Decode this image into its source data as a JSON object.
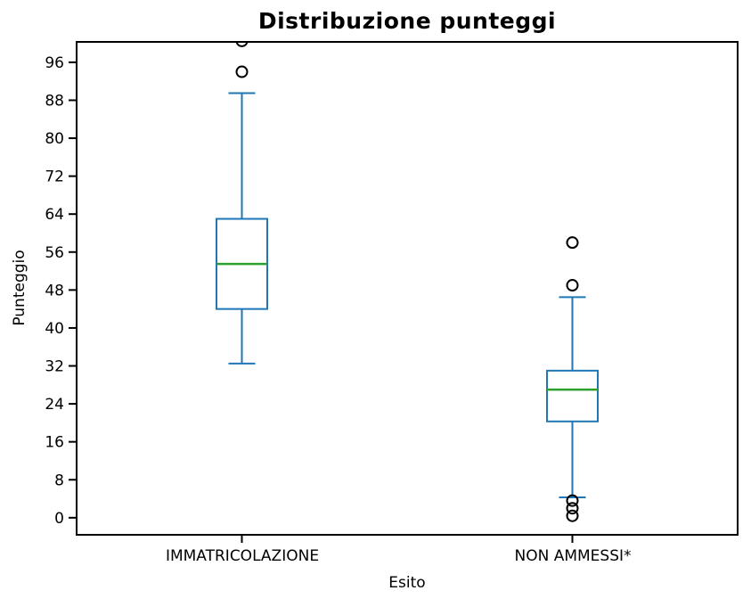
{
  "chart_data": {
    "type": "boxplot",
    "title": "Distribuzione punteggi",
    "xlabel": "Esito",
    "ylabel": "Punteggio",
    "categories": [
      "IMMATRICOLAZIONE",
      "NON AMMESSI*"
    ],
    "yticks": [
      0,
      8,
      16,
      24,
      32,
      40,
      48,
      56,
      64,
      72,
      80,
      88,
      96
    ],
    "ylim": [
      -3.6,
      100.3
    ],
    "grid": false,
    "legend": "none",
    "series": [
      {
        "name": "IMMATRICOLAZIONE",
        "whisker_low": 32.5,
        "q1": 44,
        "median": 53.5,
        "q3": 63,
        "whisker_high": 89.5,
        "outliers": [
          94,
          100.5
        ]
      },
      {
        "name": "NON AMMESSI*",
        "whisker_low": 4.3,
        "q1": 20.3,
        "median": 27,
        "q3": 31,
        "whisker_high": 46.5,
        "outliers": [
          58,
          49,
          3.6,
          2,
          0.4
        ]
      }
    ],
    "colors": {
      "box": "#1f77b4",
      "median": "#2ca02c",
      "outlier_stroke": "#000000",
      "axis": "#000000",
      "background": "#ffffff"
    }
  }
}
